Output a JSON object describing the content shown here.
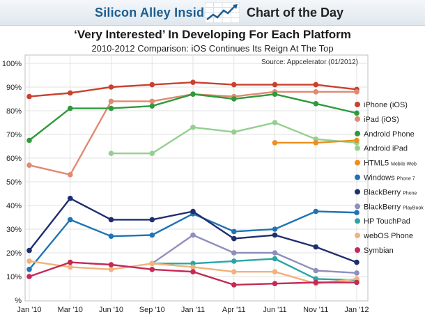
{
  "header": {
    "brand": "Silicon Alley Insider",
    "section": "Chart of the Day",
    "logo_icon": "rising-chart-icon"
  },
  "chart_data": {
    "type": "line",
    "title": "‘Very Interested’ In Developing For Each Platform",
    "subtitle": "2010-2012 Comparison: iOS Continues Its Reign At The Top",
    "source": "Source: Appcelerator (01/2012)",
    "categories": [
      "Jan '10",
      "Mar '10",
      "Jun '10",
      "Sep '10",
      "Jan '11",
      "Apr '11",
      "Jun '11",
      "Nov '11",
      "Jan '12"
    ],
    "y_ticks": [
      "%",
      "10%",
      "20%",
      "30%",
      "40%",
      "50%",
      "60%",
      "70%",
      "80%",
      "90%",
      "100%"
    ],
    "ylim": [
      0,
      100
    ],
    "grid": true,
    "legend_position": "right",
    "series": [
      {
        "name": "iPhone (iOS)",
        "color": "#c9412f",
        "values": [
          86,
          87.5,
          90,
          91,
          92,
          91,
          91,
          91,
          89
        ]
      },
      {
        "name": "iPad (iOS)",
        "color": "#e08a72",
        "values": [
          57,
          53,
          84,
          84,
          87,
          86,
          88,
          88,
          88
        ]
      },
      {
        "name": "Android Phone",
        "color": "#2f9a3c",
        "values": [
          67.5,
          81,
          81,
          82,
          87,
          85,
          87,
          83,
          79
        ]
      },
      {
        "name": "Android iPad",
        "color": "#93d08f",
        "values": [
          null,
          null,
          62,
          62,
          73,
          71,
          75,
          68,
          66.5
        ]
      },
      {
        "name": "HTML5",
        "suffix": "Mobile Web",
        "color": "#ef8e1d",
        "values": [
          null,
          null,
          null,
          null,
          null,
          null,
          66.5,
          66.5,
          67.5
        ]
      },
      {
        "name": "Windows",
        "suffix": "Phone 7",
        "color": "#1f74b5",
        "values": [
          13,
          34,
          27,
          27.5,
          36.5,
          29,
          30,
          37.5,
          37
        ]
      },
      {
        "name": "BlackBerry",
        "suffix": "Phone",
        "color": "#1e2e6e",
        "values": [
          21,
          43,
          34,
          34,
          37.5,
          26,
          27.5,
          22.5,
          16
        ]
      },
      {
        "name": "BlackBerry",
        "suffix": "PlayBook",
        "color": "#8f8fbd",
        "values": [
          null,
          null,
          null,
          15.5,
          27.5,
          20,
          20,
          12.5,
          11.5
        ]
      },
      {
        "name": "HP TouchPad",
        "color": "#2aa5a5",
        "values": [
          null,
          null,
          null,
          15.5,
          15.5,
          16.5,
          17.5,
          9,
          8.5
        ]
      },
      {
        "name": "webOS Phone",
        "color": "#f2b27a",
        "values": [
          16.5,
          14,
          13,
          15.5,
          14,
          12,
          12,
          7,
          9
        ]
      },
      {
        "name": "Symbian",
        "color": "#c42a56",
        "values": [
          10,
          16,
          15,
          13,
          12,
          6.5,
          7,
          7.5,
          7.5
        ]
      }
    ]
  }
}
